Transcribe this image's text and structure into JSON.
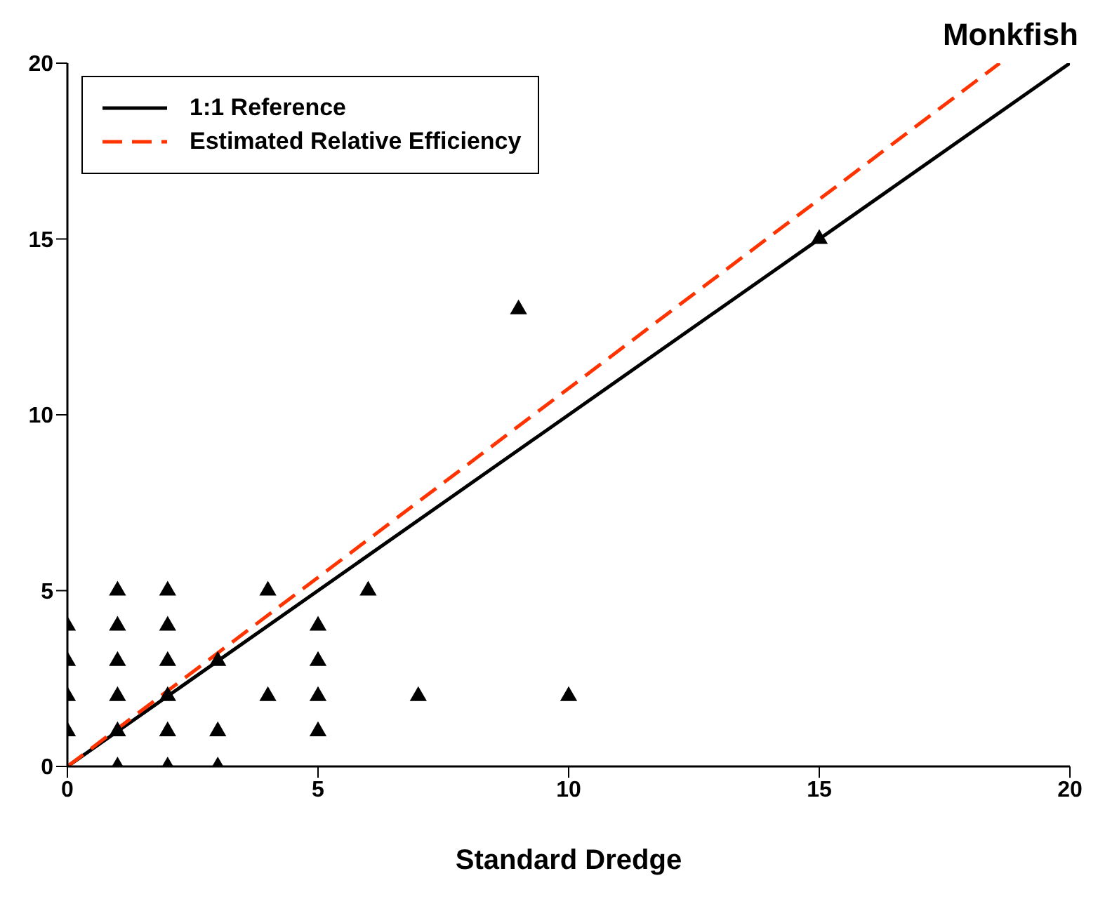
{
  "chart_data": {
    "type": "scatter",
    "title": "Monkfish",
    "xlabel": "Standard Dredge",
    "xlim": [
      0,
      20
    ],
    "ylim": [
      0,
      20
    ],
    "xticks": [
      0,
      5,
      10,
      15,
      20
    ],
    "yticks": [
      0,
      5,
      10,
      15,
      20
    ],
    "legend": "top left",
    "series": [
      {
        "color": "#000000",
        "marker": "triangle",
        "x": [
          0,
          0,
          0,
          0,
          1,
          1,
          1,
          1,
          1,
          1,
          2,
          2,
          2,
          2,
          2,
          2,
          3,
          3,
          3,
          4,
          4,
          5,
          5,
          5,
          5,
          6,
          7,
          9,
          10,
          15
        ],
        "values": [
          1,
          2,
          3,
          4,
          0,
          1,
          2,
          3,
          4,
          5,
          0,
          1,
          2,
          3,
          4,
          5,
          0,
          1,
          3,
          2,
          5,
          1,
          2,
          3,
          4,
          5,
          2,
          13,
          2,
          15
        ]
      },
      {
        "type": "line",
        "name": "1:1 Reference",
        "color": "#000000",
        "line_style": "solid",
        "marker": "none",
        "x": [
          0,
          20
        ],
        "values": [
          0,
          20
        ]
      },
      {
        "type": "line",
        "name": "Estimated Relative Efficiency",
        "color": "#ff3300",
        "line_style": "dashed",
        "marker": "none",
        "x": [
          0,
          18.6
        ],
        "values": [
          0,
          20
        ]
      }
    ]
  }
}
